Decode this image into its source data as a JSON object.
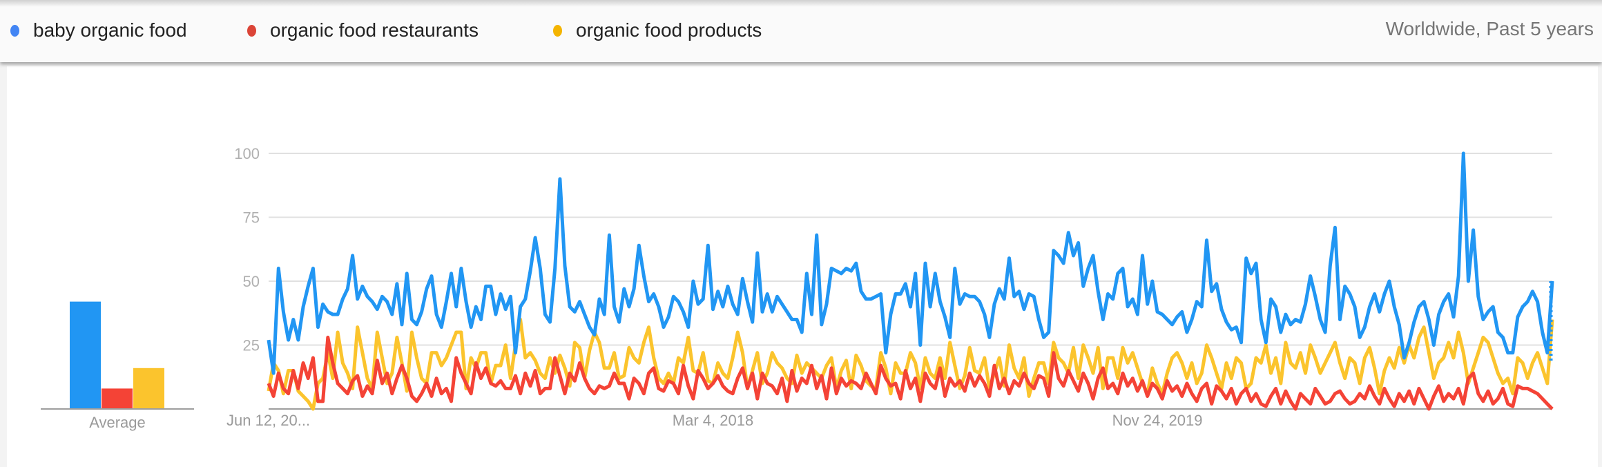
{
  "header": {
    "legend": [
      {
        "label": "baby organic food",
        "color": "#4285f4"
      },
      {
        "label": "organic food restaurants",
        "color": "#db4437"
      },
      {
        "label": "organic food products",
        "color": "#f4b400"
      }
    ],
    "region_period": "Worldwide, Past 5 years"
  },
  "chart_data": [
    {
      "type": "bar",
      "categories": [
        "Average"
      ],
      "series": [
        {
          "name": "baby organic food",
          "values": [
            42
          ],
          "color": "#2196f3"
        },
        {
          "name": "organic food restaurants",
          "values": [
            8
          ],
          "color": "#f44336"
        },
        {
          "name": "organic food products",
          "values": [
            16
          ],
          "color": "#fbc42d"
        }
      ],
      "xlabel": "Average",
      "ylim": [
        0,
        100
      ]
    },
    {
      "type": "line",
      "ylim": [
        0,
        100
      ],
      "yticks": [
        "100",
        "75",
        "50",
        "25"
      ],
      "ytick_values": [
        100,
        75,
        50,
        25
      ],
      "xtick_labels": [
        {
          "label": "Jun 12, 20...",
          "index": 0
        },
        {
          "label": "Mar 4, 2018",
          "index": 90
        },
        {
          "label": "Nov 24, 2019",
          "index": 180
        }
      ],
      "grid": true,
      "x_interval": "weekly",
      "series": [
        {
          "name": "baby organic food",
          "color": "#2196f3",
          "values": [
            27,
            14,
            55,
            38,
            27,
            35,
            27,
            40,
            48,
            55,
            32,
            41,
            38,
            37,
            37,
            43,
            47,
            60,
            43,
            48,
            44,
            42,
            39,
            44,
            42,
            37,
            49,
            33,
            53,
            35,
            33,
            38,
            47,
            52,
            37,
            32,
            42,
            53,
            40,
            55,
            42,
            32,
            40,
            35,
            48,
            48,
            37,
            45,
            39,
            44,
            22,
            40,
            43,
            54,
            67,
            55,
            37,
            34,
            55,
            90,
            56,
            40,
            38,
            42,
            37,
            32,
            29,
            43,
            37,
            68,
            40,
            34,
            47,
            40,
            47,
            64,
            52,
            42,
            45,
            40,
            32,
            36,
            44,
            42,
            38,
            32,
            50,
            41,
            43,
            64,
            39,
            46,
            40,
            48,
            41,
            37,
            51,
            42,
            34,
            61,
            38,
            45,
            38,
            44,
            41,
            38,
            35,
            35,
            30,
            53,
            37,
            68,
            33,
            41,
            55,
            54,
            53,
            55,
            54,
            57,
            46,
            43,
            43,
            44,
            45,
            22,
            37,
            45,
            45,
            49,
            40,
            53,
            25,
            57,
            40,
            53,
            42,
            36,
            28,
            55,
            41,
            45,
            44,
            44,
            42,
            37,
            28,
            41,
            47,
            43,
            59,
            44,
            46,
            39,
            45,
            44,
            35,
            28,
            30,
            62,
            60,
            57,
            69,
            60,
            65,
            48,
            55,
            60,
            46,
            35,
            45,
            43,
            53,
            55,
            40,
            43,
            37,
            60,
            41,
            50,
            38,
            37,
            35,
            33,
            36,
            38,
            30,
            35,
            42,
            40,
            66,
            46,
            49,
            39,
            34,
            31,
            32,
            26,
            59,
            53,
            57,
            35,
            26,
            43,
            40,
            30,
            37,
            33,
            35,
            34,
            41,
            52,
            44,
            35,
            30,
            56,
            71,
            35,
            48,
            45,
            40,
            28,
            32,
            40,
            45,
            38,
            45,
            50,
            40,
            33,
            20,
            26,
            34,
            40,
            42,
            35,
            25,
            37,
            42,
            45,
            36,
            52,
            100,
            50,
            70,
            44,
            35,
            38,
            40,
            30,
            28,
            22,
            22,
            36,
            40,
            42,
            46,
            42,
            30,
            22,
            50
          ]
        },
        {
          "name": "organic food restaurants",
          "color": "#f44336",
          "values": [
            10,
            5,
            14,
            8,
            6,
            15,
            8,
            18,
            12,
            20,
            3,
            3,
            28,
            18,
            10,
            8,
            6,
            11,
            13,
            5,
            9,
            6,
            19,
            10,
            14,
            6,
            12,
            17,
            12,
            5,
            3,
            6,
            10,
            5,
            12,
            6,
            8,
            3,
            20,
            14,
            10,
            6,
            18,
            12,
            16,
            10,
            9,
            11,
            8,
            8,
            13,
            6,
            14,
            9,
            15,
            6,
            8,
            8,
            20,
            13,
            6,
            14,
            11,
            18,
            12,
            8,
            6,
            9,
            8,
            9,
            14,
            10,
            10,
            4,
            12,
            10,
            6,
            14,
            16,
            8,
            7,
            11,
            10,
            6,
            17,
            9,
            4,
            15,
            12,
            8,
            10,
            13,
            9,
            7,
            6,
            12,
            16,
            8,
            14,
            4,
            14,
            10,
            9,
            6,
            12,
            3,
            15,
            7,
            12,
            10,
            17,
            8,
            13,
            4,
            16,
            6,
            12,
            9,
            11,
            10,
            8,
            14,
            10,
            6,
            17,
            12,
            9,
            10,
            4,
            15,
            8,
            12,
            3,
            14,
            10,
            8,
            16,
            5,
            12,
            9,
            11,
            7,
            14,
            9,
            13,
            10,
            5,
            17,
            8,
            12,
            6,
            11,
            9,
            14,
            10,
            8,
            13,
            12,
            5,
            22,
            12,
            9,
            15,
            11,
            7,
            14,
            10,
            4,
            12,
            16,
            8,
            10,
            6,
            14,
            9,
            12,
            7,
            11,
            5,
            10,
            8,
            4,
            11,
            7,
            9,
            5,
            10,
            6,
            3,
            8,
            10,
            2,
            9,
            7,
            4,
            8,
            2,
            6,
            8,
            3,
            6,
            2,
            1,
            5,
            8,
            2,
            7,
            3,
            0,
            6,
            4,
            2,
            8,
            5,
            2,
            3,
            6,
            7,
            4,
            2,
            3,
            6,
            4,
            9,
            5,
            2,
            8,
            4,
            1,
            6,
            3,
            7,
            2,
            8,
            4,
            0,
            5,
            9,
            3,
            6,
            4,
            8,
            2,
            12,
            14,
            6,
            3,
            7,
            2,
            4,
            8,
            2,
            1,
            9,
            8,
            8,
            7,
            6,
            4,
            2,
            0
          ]
        },
        {
          "name": "organic food products",
          "color": "#fbc42d",
          "values": [
            7,
            18,
            15,
            6,
            15,
            15,
            7,
            5,
            3,
            0,
            10,
            12,
            22,
            12,
            30,
            18,
            14,
            8,
            32,
            22,
            12,
            8,
            30,
            20,
            10,
            14,
            28,
            18,
            7,
            30,
            20,
            12,
            10,
            22,
            22,
            17,
            20,
            25,
            30,
            30,
            8,
            20,
            16,
            22,
            22,
            10,
            17,
            17,
            25,
            12,
            25,
            35,
            20,
            22,
            19,
            14,
            12,
            20,
            14,
            21,
            16,
            9,
            26,
            24,
            12,
            23,
            30,
            26,
            16,
            16,
            22,
            12,
            13,
            24,
            20,
            18,
            26,
            32,
            20,
            12,
            10,
            14,
            10,
            20,
            18,
            28,
            15,
            14,
            22,
            11,
            10,
            18,
            14,
            12,
            20,
            30,
            22,
            8,
            15,
            22,
            10,
            14,
            22,
            18,
            16,
            12,
            10,
            21,
            14,
            18,
            16,
            14,
            12,
            17,
            20,
            8,
            15,
            19,
            8,
            21,
            17,
            11,
            9,
            8,
            22,
            16,
            6,
            18,
            14,
            14,
            22,
            18,
            8,
            20,
            14,
            12,
            20,
            12,
            26,
            17,
            8,
            13,
            24,
            15,
            14,
            20,
            8,
            14,
            20,
            9,
            25,
            16,
            12,
            20,
            5,
            12,
            18,
            18,
            10,
            26,
            20,
            18,
            14,
            24,
            12,
            25,
            20,
            14,
            24,
            8,
            20,
            20,
            12,
            24,
            18,
            22,
            16,
            10,
            6,
            16,
            10,
            6,
            14,
            20,
            22,
            18,
            12,
            18,
            10,
            14,
            25,
            20,
            14,
            8,
            18,
            12,
            20,
            18,
            8,
            10,
            20,
            18,
            25,
            14,
            20,
            10,
            26,
            18,
            16,
            22,
            14,
            25,
            20,
            14,
            18,
            22,
            26,
            18,
            12,
            20,
            18,
            10,
            20,
            24,
            16,
            6,
            15,
            20,
            16,
            24,
            18,
            25,
            20,
            28,
            32,
            22,
            12,
            18,
            20,
            26,
            20,
            30,
            22,
            10,
            16,
            22,
            28,
            26,
            20,
            14,
            10,
            12,
            6,
            20,
            18,
            12,
            18,
            22,
            16,
            10,
            35
          ]
        }
      ]
    }
  ]
}
